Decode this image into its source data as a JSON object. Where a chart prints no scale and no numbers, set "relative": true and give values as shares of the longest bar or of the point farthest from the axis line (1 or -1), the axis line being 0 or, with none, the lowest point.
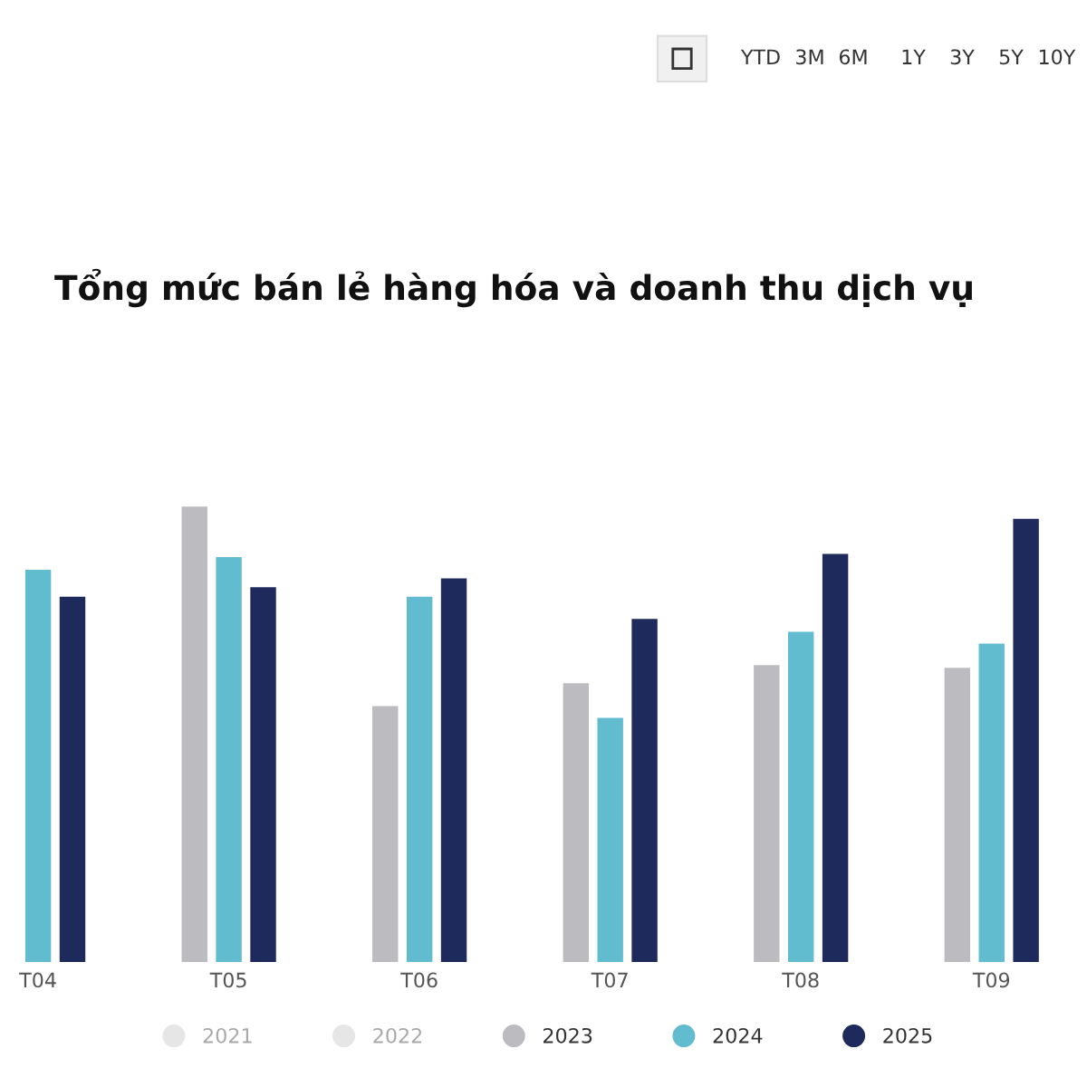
{
  "chart_data": {
    "type": "bar",
    "title": "Tổng mức bán lẻ hàng hóa và doanh thu dịch vụ",
    "categories": [
      "T04",
      "T05",
      "T06",
      "T07",
      "T08",
      "T09"
    ],
    "relative": true,
    "series": [
      {
        "name": "2021",
        "color": "#e6e6e6",
        "values": [
          null,
          null,
          null,
          null,
          null,
          null
        ]
      },
      {
        "name": "2022",
        "color": "#e6e6e6",
        "values": [
          null,
          null,
          null,
          null,
          null,
          null
        ]
      },
      {
        "name": "2023",
        "color": "#bcbcc0",
        "values": [
          null,
          1,
          0.562,
          0.612,
          0.652,
          0.646
        ]
      },
      {
        "name": "2024",
        "color": "#62bccf",
        "values": [
          0.861,
          0.889,
          0.802,
          0.536,
          0.725,
          0.699
        ]
      },
      {
        "name": "2025",
        "color": "#1f2a5c",
        "values": [
          0.802,
          0.823,
          0.842,
          0.753,
          0.896,
          0.973
        ]
      }
    ],
    "legend": "bottom",
    "annotations": [
      "YTD",
      "3M",
      "6M",
      "1Y",
      "3Y",
      "5Y",
      "10Y"
    ]
  }
}
